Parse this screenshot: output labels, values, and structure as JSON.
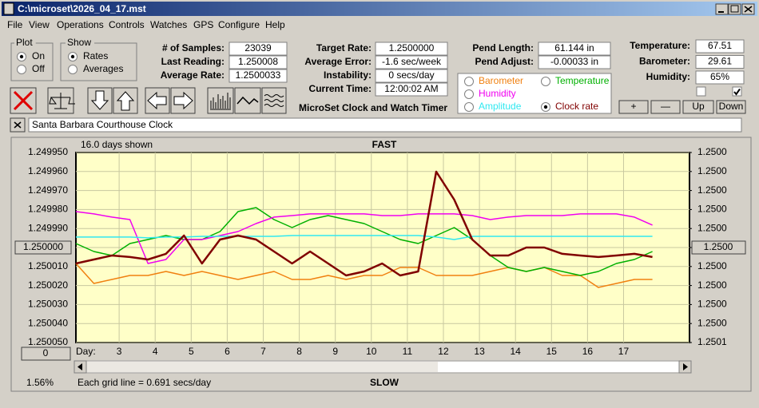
{
  "window": {
    "title": "C:\\microset\\2026_04_17.mst"
  },
  "menu": [
    "File",
    "View",
    "Operations",
    "Controls",
    "Watches",
    "GPS",
    "Configure",
    "Help"
  ],
  "plot_group": {
    "title": "Plot",
    "options": [
      "On",
      "Off"
    ],
    "selected": 0
  },
  "show_group": {
    "title": "Show",
    "options": [
      "Rates",
      "Averages"
    ],
    "selected": 0
  },
  "fields": {
    "samples": [
      {
        "label": "# of Samples:",
        "value": "23039"
      },
      {
        "label": "Last Reading:",
        "value": "1.250008"
      },
      {
        "label": "Average Rate:",
        "value": "1.2500033"
      }
    ],
    "rates": [
      {
        "label": "Target Rate:",
        "value": "1.2500000"
      },
      {
        "label": "Average Error:",
        "value": "-1.6 sec/week"
      },
      {
        "label": "Instability:",
        "value": "0 secs/day"
      },
      {
        "label": "Current Time:",
        "value": "12:00:02 AM"
      }
    ],
    "pendulum": [
      {
        "label": "Pend Length:",
        "value": "61.144 in"
      },
      {
        "label": "Pend Adjust:",
        "value": "-0.00033 in"
      }
    ],
    "weather": [
      {
        "label": "Temperature:",
        "value": "67.51"
      },
      {
        "label": "Barometer:",
        "value": "29.61"
      },
      {
        "label": "Humidity:",
        "value": "65%"
      }
    ]
  },
  "checkboxes": [
    false,
    true
  ],
  "buttons": [
    "+",
    "—",
    "Up",
    "Down"
  ],
  "app_name": "MicroSet Clock and Watch Timer",
  "clock_name": "Santa Barbara Courthouse Clock",
  "chart_data": {
    "type": "line",
    "top_note": "16.0 days shown",
    "top_label": "FAST",
    "bottom_label": "SLOW",
    "x_label": "Day:",
    "footer": "Each grid line = 0.691 secs/day",
    "zoom": "1.56%",
    "offset": "0",
    "legend_selected": 4,
    "grid": true,
    "yreverse": true,
    "xlim": [
      1.8,
      18.83
    ],
    "xticks": [
      3,
      4,
      5,
      6,
      7,
      8,
      9,
      10,
      11,
      12,
      13,
      14,
      15,
      16,
      17
    ],
    "ylim": [
      1.24995,
      1.25005
    ],
    "yticks": [
      {
        "value": 1.24995,
        "label": "1.249950"
      },
      {
        "value": 1.24996,
        "label": "1.249960"
      },
      {
        "value": 1.24997,
        "label": "1.249970"
      },
      {
        "value": 1.24998,
        "label": "1.249980"
      },
      {
        "value": 1.24999,
        "label": "1.249990"
      },
      {
        "value": 1.25,
        "label": "1.250000"
      },
      {
        "value": 1.25001,
        "label": "1.250010"
      },
      {
        "value": 1.25002,
        "label": "1.250020"
      },
      {
        "value": 1.25003,
        "label": "1.250030"
      },
      {
        "value": 1.25004,
        "label": "1.250040"
      },
      {
        "value": 1.25005,
        "label": "1.250050"
      }
    ],
    "y2lim": [
      1.24995,
      1.25005
    ],
    "y2ticks": [
      {
        "value": 1.24995,
        "label": "1.2500"
      },
      {
        "value": 1.24996,
        "label": "1.2500"
      },
      {
        "value": 1.24997,
        "label": "1.2500"
      },
      {
        "value": 1.24998,
        "label": "1.2500"
      },
      {
        "value": 1.24999,
        "label": "1.2500"
      },
      {
        "value": 1.25,
        "label": "1.2500"
      },
      {
        "value": 1.25001,
        "label": "1.2500"
      },
      {
        "value": 1.25002,
        "label": "1.2500"
      },
      {
        "value": 1.25003,
        "label": "1.2500"
      },
      {
        "value": 1.25004,
        "label": "1.2500"
      },
      {
        "value": 1.25005,
        "label": "1.2501"
      }
    ],
    "x": [
      1.8,
      2.3,
      2.8,
      3.3,
      3.8,
      4.3,
      4.8,
      5.3,
      5.8,
      6.3,
      6.8,
      7.3,
      7.8,
      8.3,
      8.8,
      9.3,
      9.8,
      10.3,
      10.8,
      11.3,
      11.8,
      12.3,
      12.8,
      13.3,
      13.8,
      14.3,
      14.8,
      15.3,
      15.8,
      16.3,
      16.8,
      17.3,
      17.8
    ],
    "series": [
      {
        "name": "Barometer",
        "color": "#f08010",
        "values": [
          1.2500084,
          1.2500189,
          1.2500168,
          1.2500147,
          1.2500147,
          1.2500126,
          1.2500147,
          1.2500126,
          1.2500147,
          1.2500168,
          1.2500147,
          1.2500126,
          1.2500168,
          1.2500168,
          1.2500147,
          1.2500168,
          1.2500147,
          1.2500147,
          1.2500105,
          1.2500105,
          1.2500147,
          1.2500147,
          1.2500147,
          1.2500126,
          1.2500105,
          1.2500126,
          1.2500105,
          1.2500147,
          1.2500147,
          1.250021,
          1.2500189,
          1.2500168,
          1.2500168
        ]
      },
      {
        "name": "Temperature",
        "color": "#00b000",
        "values": [
          1.2499979,
          1.2500021,
          1.2500042,
          1.2499979,
          1.2499958,
          1.2499937,
          1.2499958,
          1.2499958,
          1.2499916,
          1.2499811,
          1.249979,
          1.2499853,
          1.2499895,
          1.2499853,
          1.2499832,
          1.2499853,
          1.2499874,
          1.2499916,
          1.2499958,
          1.2499979,
          1.2499937,
          1.2499895,
          1.2499958,
          1.2500042,
          1.2500105,
          1.2500126,
          1.2500105,
          1.2500126,
          1.2500147,
          1.2500126,
          1.2500084,
          1.2500063,
          1.2500021
        ]
      },
      {
        "name": "Humidity",
        "color": "#f000f0",
        "values": [
          1.2499811,
          1.2499823,
          1.249984,
          1.2499853,
          1.2500084,
          1.2500063,
          1.2499958,
          1.2499958,
          1.2499937,
          1.2499916,
          1.2499874,
          1.249984,
          1.2499832,
          1.2499823,
          1.2499823,
          1.2499823,
          1.2499823,
          1.2499832,
          1.2499832,
          1.2499823,
          1.2499823,
          1.2499823,
          1.2499832,
          1.2499853,
          1.249984,
          1.2499832,
          1.2499832,
          1.2499832,
          1.2499823,
          1.2499823,
          1.2499823,
          1.249984,
          1.2499882
        ]
      },
      {
        "name": "Amplitude",
        "color": "#30e8f0",
        "values": [
          1.2499945,
          1.2499945,
          1.2499945,
          1.2499945,
          1.2499949,
          1.2499945,
          1.2499945,
          1.2499941,
          1.2499941,
          1.2499941,
          1.2499941,
          1.2499941,
          1.2499937,
          1.2499937,
          1.2499937,
          1.2499937,
          1.2499937,
          1.2499937,
          1.2499937,
          1.2499937,
          1.2499945,
          1.2499958,
          1.2499941,
          1.2499941,
          1.2499941,
          1.2499941,
          1.2499941,
          1.2499941,
          1.2499941,
          1.2499941,
          1.2499941,
          1.2499941,
          1.2499941
        ]
      },
      {
        "name": "Clock rate",
        "color": "#800000",
        "values": [
          1.2500084,
          1.2500063,
          1.2500042,
          1.250005,
          1.2500063,
          1.2500033,
          1.2499937,
          1.2500084,
          1.2499958,
          1.2499937,
          1.2499958,
          1.2500021,
          1.2500084,
          1.2500021,
          1.2500084,
          1.2500147,
          1.2500126,
          1.2500084,
          1.2500147,
          1.2500126,
          1.2499601,
          1.2499748,
          1.2499958,
          1.2500042,
          1.2500042,
          1.25,
          1.25,
          1.2500033,
          1.2500042,
          1.250005,
          1.2500042,
          1.2500033,
          1.250005
        ]
      }
    ]
  }
}
